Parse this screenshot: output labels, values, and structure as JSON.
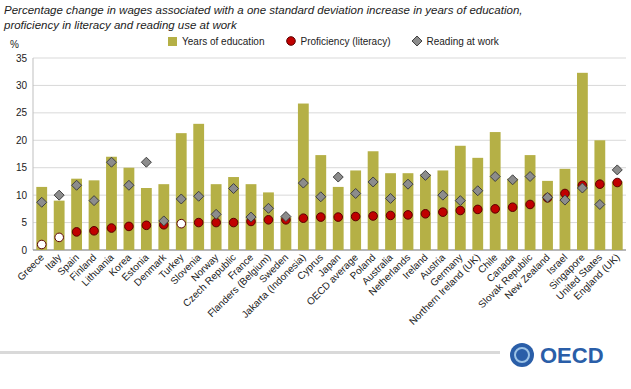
{
  "chart_data": {
    "type": "bar",
    "title": "Percentage change in wages associated with a one standard deviation increase in years of education,",
    "subtitle": "proficiency in literacy and reading use at work",
    "y_label": "%",
    "annotations": [
      "OECD"
    ],
    "categories": [
      "Greece",
      "Italy",
      "Spain",
      "Finland",
      "Lithuania",
      "Korea",
      "Estonia",
      "Denmark",
      "Turkey",
      "Slovenia",
      "Norway",
      "Czech Republic",
      "France",
      "Flanders (Belgium)",
      "Sweden",
      "Jakarta (Indonesia)",
      "Cyprus",
      "Japan",
      "OECD average",
      "Poland",
      "Australia",
      "Netherlands",
      "Ireland",
      "Austria",
      "Germany",
      "Northern Ireland (UK)",
      "Chile",
      "Canada",
      "Slovak Republic",
      "New Zealand",
      "Israel",
      "Singapore",
      "United States",
      "England (UK)"
    ],
    "series": [
      {
        "name": "Years of education",
        "type": "bar",
        "color": "#b5b046",
        "values": [
          11.5,
          9,
          13,
          12.7,
          17,
          15,
          11.3,
          12,
          21.3,
          23,
          12,
          13.3,
          12,
          10.5,
          6,
          26.7,
          17.3,
          11.5,
          14.5,
          18,
          14,
          14,
          13.8,
          14.5,
          19,
          16.8,
          21.5,
          13,
          17.3,
          12.6,
          14.8,
          32.3,
          20,
          12.5
        ]
      },
      {
        "name": "Proficiency (literacy)",
        "type": "scatter",
        "marker": "circle",
        "color": "#c00000",
        "colors": [
          "#ffffff",
          "#ffffff",
          "#c00000",
          "#c00000",
          "#c00000",
          "#c00000",
          "#c00000",
          "#c00000",
          "#ffffff",
          "#c00000",
          "#c00000",
          "#c00000",
          "#c00000",
          "#c00000",
          "#c00000",
          "#c00000",
          "#c00000",
          "#c00000",
          "#c00000",
          "#c00000",
          "#c00000",
          "#c00000",
          "#c00000",
          "#c00000",
          "#c00000",
          "#c00000",
          "#c00000",
          "#c00000",
          "#c00000",
          "#c00000",
          "#c00000",
          "#c00000",
          "#c00000",
          "#c00000"
        ],
        "values": [
          1,
          2.3,
          3.3,
          3.5,
          4,
          4.3,
          4.5,
          4.6,
          4.8,
          5,
          5,
          5,
          5.2,
          5.5,
          5.5,
          5.8,
          6,
          6,
          6.1,
          6.2,
          6.3,
          6.4,
          6.6,
          6.9,
          7.2,
          7.4,
          7.5,
          7.8,
          8.3,
          9.5,
          10.3,
          11.8,
          12,
          12.3
        ]
      },
      {
        "name": "Reading at work",
        "type": "scatter",
        "marker": "diamond",
        "color": "#8c8c8c",
        "values": [
          8.7,
          10,
          11.8,
          9,
          16,
          11.8,
          16,
          5.3,
          9.3,
          9.8,
          6.5,
          11.2,
          6,
          7.6,
          6.1,
          12.2,
          9.7,
          13.3,
          10.3,
          12.4,
          9.4,
          12,
          13.6,
          10,
          9,
          10.8,
          13.4,
          12.8,
          13.4,
          9.6,
          9.1,
          11.3,
          8.3,
          14.6
        ]
      }
    ],
    "ylim": [
      0,
      35
    ],
    "yticks": [
      0,
      5,
      10,
      15,
      20,
      25,
      30,
      35
    ],
    "grid": true,
    "legend": "top"
  }
}
